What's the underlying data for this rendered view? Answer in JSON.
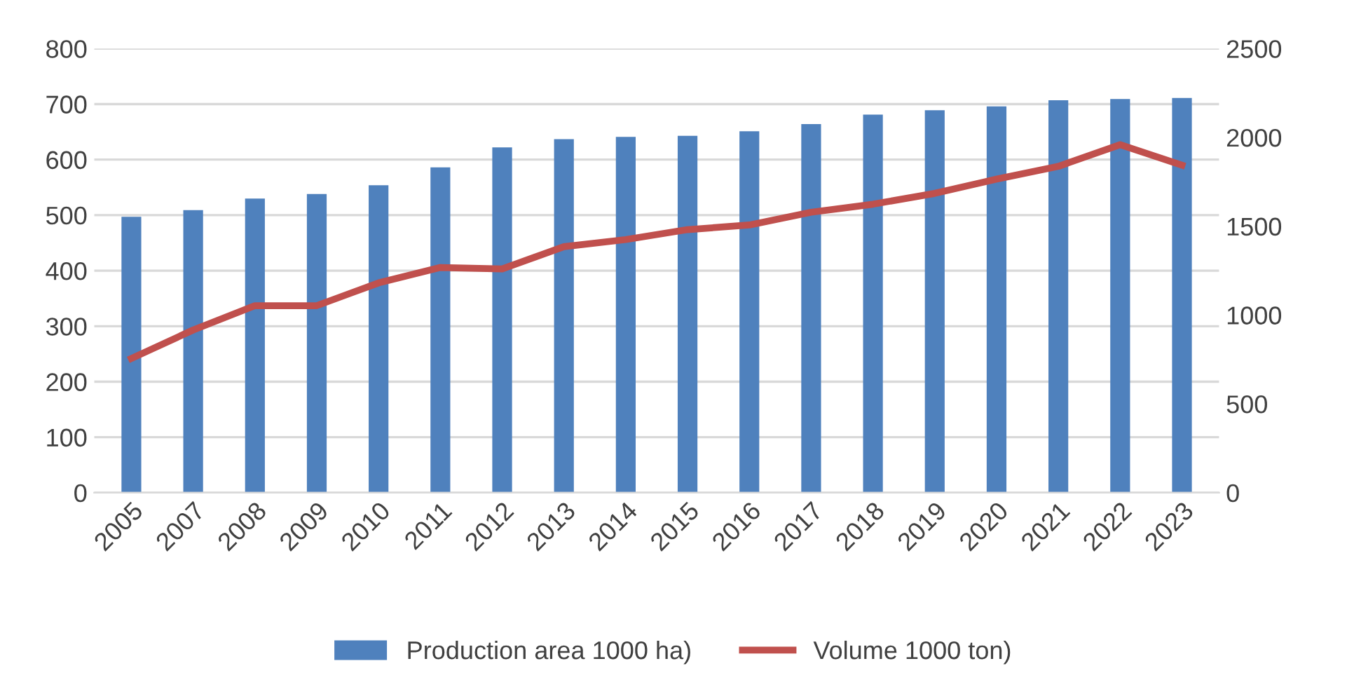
{
  "chart_data": {
    "type": "bar",
    "categories": [
      "2005",
      "2007",
      "2008",
      "2009",
      "2010",
      "2011",
      "2012",
      "2013",
      "2014",
      "2015",
      "2016",
      "2017",
      "2018",
      "2019",
      "2020",
      "2021",
      "2022",
      "2023"
    ],
    "series": [
      {
        "name": "Production area 1000 ha)",
        "color": "#4f81bd",
        "values": [
          497,
          509,
          530,
          538,
          554,
          586,
          622,
          637,
          641,
          643,
          651,
          664,
          681,
          689,
          696,
          707,
          709,
          711
        ]
      },
      {
        "name": "Volume 1000 ton)",
        "type": "line",
        "axis": "y2",
        "color": "#c0504d",
        "values": [
          756,
          916,
          1053,
          1053,
          1181,
          1268,
          1260,
          1385,
          1425,
          1481,
          1507,
          1579,
          1624,
          1685,
          1765,
          1837,
          1959,
          1844
        ]
      }
    ],
    "ylim": [
      0,
      800
    ],
    "yticks": [
      0,
      100,
      200,
      300,
      400,
      500,
      600,
      700,
      800
    ],
    "y2lim": [
      0,
      2500
    ],
    "y2ticks": [
      0,
      500,
      1000,
      1500,
      2000,
      2500
    ],
    "grid": "y",
    "legend": "bottom"
  }
}
